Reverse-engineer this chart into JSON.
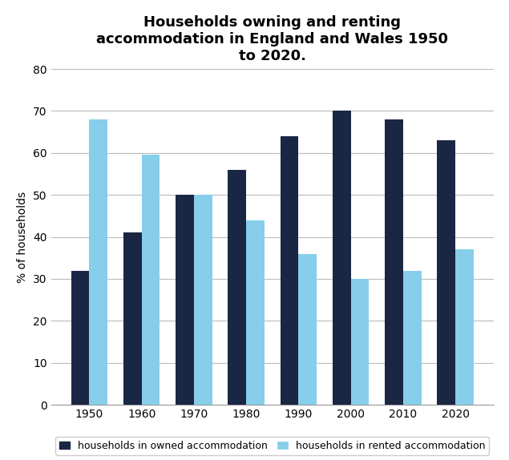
{
  "title": "Households owning and renting\naccommodation in England and Wales 1950\nto 2020.",
  "years": [
    1950,
    1960,
    1970,
    1980,
    1990,
    2000,
    2010,
    2020
  ],
  "owned": [
    32,
    41,
    50,
    56,
    64,
    70,
    68,
    63
  ],
  "rented": [
    68,
    59.5,
    50,
    44,
    36,
    30,
    32,
    37
  ],
  "owned_color": "#1a2744",
  "rented_color": "#87ceeb",
  "ylabel": "% of households",
  "ylim": [
    0,
    80
  ],
  "yticks": [
    0,
    10,
    20,
    30,
    40,
    50,
    60,
    70,
    80
  ],
  "legend_owned": "households in owned accommodation",
  "legend_rented": "households in rented accommodation",
  "bar_width": 0.35,
  "title_fontsize": 13,
  "axis_fontsize": 10,
  "tick_fontsize": 10,
  "legend_fontsize": 9,
  "background_color": "#ffffff"
}
